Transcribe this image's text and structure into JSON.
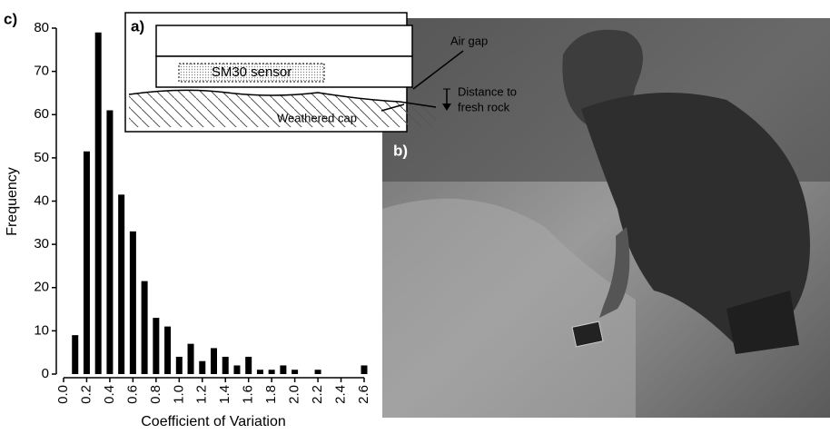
{
  "chart_data": {
    "type": "bar",
    "panel_label": "c)",
    "x_label": "Coefficient of Variation",
    "y_label": "Frequency",
    "x": [
      0.1,
      0.2,
      0.3,
      0.4,
      0.5,
      0.6,
      0.7,
      0.8,
      0.9,
      1.0,
      1.1,
      1.2,
      1.3,
      1.4,
      1.5,
      1.6,
      1.7,
      1.8,
      1.9,
      2.0,
      2.1,
      2.2,
      2.3,
      2.4,
      2.5,
      2.6
    ],
    "values": [
      9,
      51.5,
      79,
      61,
      41.5,
      33,
      21.5,
      13,
      11,
      4,
      7,
      3,
      6,
      4,
      2,
      4,
      1,
      1,
      2,
      1,
      0,
      1,
      0,
      0,
      0,
      2
    ],
    "color": "#000000",
    "xlim": [
      0,
      2.6
    ],
    "xticks": [
      {
        "value": 0,
        "label": "0.0"
      },
      {
        "value": 0.2,
        "label": "0.2"
      },
      {
        "value": 0.4,
        "label": "0.4"
      },
      {
        "value": 0.6,
        "label": "0.6"
      },
      {
        "value": 0.8,
        "label": "0.8"
      },
      {
        "value": 1.0,
        "label": "1.0"
      },
      {
        "value": 1.2,
        "label": "1.2"
      },
      {
        "value": 1.4,
        "label": "1.4"
      },
      {
        "value": 1.6,
        "label": "1.6"
      },
      {
        "value": 1.8,
        "label": "1.8"
      },
      {
        "value": 2.0,
        "label": "2.0"
      },
      {
        "value": 2.2,
        "label": "2.2"
      },
      {
        "value": 2.4,
        "label": "2.4"
      },
      {
        "value": 2.6,
        "label": "2.6"
      }
    ],
    "ylim": [
      0,
      80
    ],
    "yticks": [
      0,
      10,
      20,
      30,
      40,
      50,
      60,
      70,
      80
    ]
  },
  "diagram": {
    "panel_label": "a)",
    "sensor": "SM30 sensor",
    "air_gap": "Air gap",
    "distance": [
      "Distance to",
      "fresh rock"
    ],
    "weathered": "Weathered cap"
  },
  "photo": {
    "panel_label": "b)"
  }
}
